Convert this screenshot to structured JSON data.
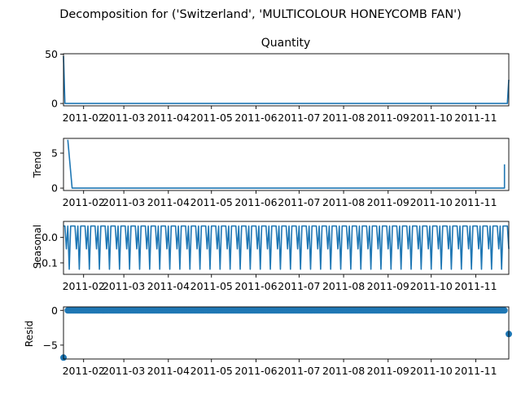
{
  "figure": {
    "suptitle": "Decomposition for ('Switzerland', 'MULTICOLOUR HONEYCOMB FAN')",
    "line_color": "#1f77b4"
  },
  "x_axis": {
    "start": "2011-01-18",
    "end": "2011-11-24",
    "ticks": [
      {
        "date": "2011-02-01",
        "label": "2011-02"
      },
      {
        "date": "2011-03-01",
        "label": "2011-03"
      },
      {
        "date": "2011-04-01",
        "label": "2011-04"
      },
      {
        "date": "2011-05-01",
        "label": "2011-05"
      },
      {
        "date": "2011-06-01",
        "label": "2011-06"
      },
      {
        "date": "2011-07-01",
        "label": "2011-07"
      },
      {
        "date": "2011-08-01",
        "label": "2011-08"
      },
      {
        "date": "2011-09-01",
        "label": "2011-09"
      },
      {
        "date": "2011-10-01",
        "label": "2011-10"
      },
      {
        "date": "2011-11-01",
        "label": "2011-11"
      }
    ]
  },
  "chart_data": [
    {
      "type": "line",
      "title": "Quantity",
      "ylabel": "",
      "ylim": [
        -2.4,
        50.4
      ],
      "yticks": [
        {
          "value": 0,
          "label": "0"
        },
        {
          "value": 50,
          "label": "50"
        }
      ],
      "series": [
        {
          "points": [
            {
              "x": "2011-01-18",
              "y": 48
            },
            {
              "x": "2011-01-19",
              "y": 0
            },
            {
              "x": "2011-11-23",
              "y": 0
            },
            {
              "x": "2011-11-24",
              "y": 24
            }
          ]
        }
      ]
    },
    {
      "type": "line",
      "title": "",
      "ylabel": "Trend",
      "ylim": [
        -0.34,
        7.1
      ],
      "yticks": [
        {
          "value": 0,
          "label": "0"
        },
        {
          "value": 5,
          "label": "5"
        }
      ],
      "series": [
        {
          "points": [
            {
              "x": "2011-01-21",
              "y": 6.9
            },
            {
              "x": "2011-01-24",
              "y": 0
            },
            {
              "x": "2011-11-21",
              "y": 0
            },
            {
              "x": "2011-11-21",
              "y": 3.4
            }
          ]
        }
      ]
    },
    {
      "type": "line",
      "title": "",
      "ylabel": "Seasonal",
      "ylim": [
        -0.145,
        0.063
      ],
      "yticks": [
        {
          "value": 0.0,
          "label": "0.0"
        },
        {
          "value": -0.1,
          "label": "−0.1"
        }
      ],
      "seasonal_pattern": [
        0.045,
        0.045,
        -0.045,
        0.045,
        -0.125,
        0.045,
        0.045
      ],
      "series": [
        {
          "start": "2011-01-18",
          "end": "2011-11-24"
        }
      ]
    },
    {
      "type": "scatter",
      "title": "",
      "ylabel": "Resid",
      "ylim": [
        -7.0,
        0.5
      ],
      "yticks": [
        {
          "value": 0,
          "label": "0"
        },
        {
          "value": -5,
          "label": "−5"
        }
      ],
      "baseline_value": 0,
      "outliers": [
        {
          "x": "2011-01-18",
          "y": -6.8
        },
        {
          "x": "2011-11-24",
          "y": -3.4
        }
      ],
      "series": [
        {
          "start": "2011-01-21",
          "end": "2011-11-21"
        }
      ]
    }
  ]
}
